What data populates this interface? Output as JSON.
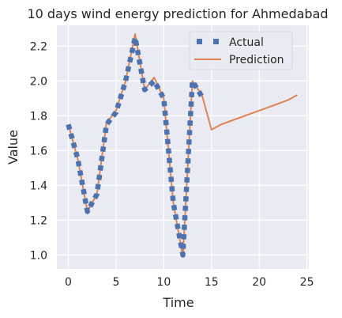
{
  "chart_data": {
    "type": "line",
    "title": "10 days wind energy prediction for Ahmedabad",
    "xlabel": "Time",
    "ylabel": "Value",
    "xlim": [
      -1.2,
      25.2
    ],
    "ylim": [
      0.92,
      2.32
    ],
    "xticks": [
      0,
      5,
      10,
      15,
      20,
      25
    ],
    "yticks": [
      1.0,
      1.2,
      1.4,
      1.6,
      1.8,
      2.0,
      2.2
    ],
    "ytick_labels": [
      "1.0",
      "1.2",
      "1.4",
      "1.6",
      "1.8",
      "2.0",
      "2.2"
    ],
    "grid": true,
    "legend_position": "top-right",
    "series": [
      {
        "name": "Actual",
        "style": "dotted-squares",
        "color": "#4c72b0",
        "x": [
          0,
          1,
          2,
          3,
          4,
          5,
          6,
          7,
          8,
          9,
          10,
          11,
          12,
          13,
          14
        ],
        "y": [
          1.75,
          1.55,
          1.25,
          1.35,
          1.75,
          1.82,
          2.0,
          2.25,
          1.95,
          2.0,
          1.9,
          1.3,
          1.0,
          2.0,
          1.91
        ]
      },
      {
        "name": "Prediction",
        "style": "line",
        "color": "#dd8452",
        "x": [
          0,
          1,
          2,
          3,
          4,
          5,
          6,
          7,
          8,
          9,
          10,
          11,
          12,
          13,
          14,
          15,
          16,
          17,
          18,
          19,
          20,
          21,
          22,
          23,
          24
        ],
        "y": [
          1.75,
          1.55,
          1.25,
          1.35,
          1.76,
          1.83,
          2.0,
          2.27,
          1.95,
          2.02,
          1.9,
          1.3,
          0.99,
          2.0,
          1.92,
          1.72,
          1.75,
          1.77,
          1.79,
          1.81,
          1.83,
          1.85,
          1.87,
          1.89,
          1.92
        ]
      }
    ]
  }
}
